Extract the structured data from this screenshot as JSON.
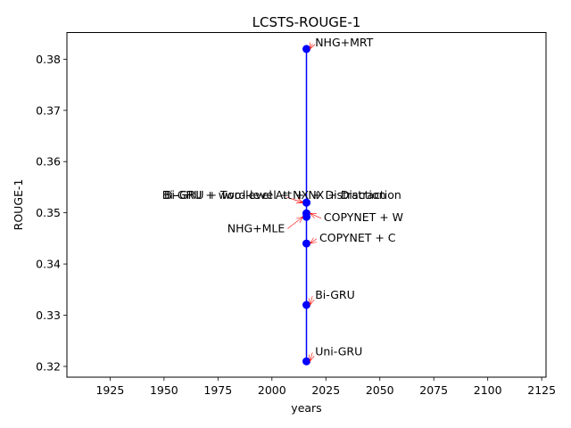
{
  "chart_data": {
    "type": "line",
    "title": "LCSTS-ROUGE-1",
    "xlabel": "years",
    "ylabel": "ROUGE-1",
    "xlim": [
      1905,
      2127
    ],
    "ylim": [
      0.3179,
      0.3852
    ],
    "xticks": [
      1925,
      1950,
      1975,
      2000,
      2025,
      2050,
      2075,
      2100,
      2125
    ],
    "yticks": [
      0.32,
      0.33,
      0.34,
      0.35,
      0.36,
      0.37,
      0.38
    ],
    "grid": false,
    "line_color": "#0000ff",
    "marker_color": "#0000ff",
    "arrow_color": "#ff0000",
    "points": [
      {
        "label": "NHG+MRT",
        "x": 2016,
        "y": 0.382,
        "text_x": 2020,
        "text_y": 0.3825,
        "ha": "left"
      },
      {
        "label": "Bi-GRU + word-level + NX + Distraction",
        "x": 2016,
        "y": 0.352,
        "text_x": 2001,
        "text_y": 0.3527,
        "ha": "center"
      },
      {
        "label": "Bi-GRU + Two-level Att + NX + Distraction",
        "x": 2016,
        "y": 0.352,
        "text_x": 2005,
        "text_y": 0.3527,
        "ha": "center"
      },
      {
        "label": "COPYNET + W",
        "x": 2016,
        "y": 0.3499,
        "text_x": 2024,
        "text_y": 0.3484,
        "ha": "left"
      },
      {
        "label": "NHG+MLE",
        "x": 2016,
        "y": 0.3492,
        "text_x": 2006,
        "text_y": 0.3462,
        "ha": "right"
      },
      {
        "label": "COPYNET + C",
        "x": 2016,
        "y": 0.344,
        "text_x": 2022,
        "text_y": 0.3444,
        "ha": "left"
      },
      {
        "label": "Bi-GRU",
        "x": 2016,
        "y": 0.332,
        "text_x": 2020,
        "text_y": 0.3332,
        "ha": "left"
      },
      {
        "label": "Uni-GRU",
        "x": 2016,
        "y": 0.321,
        "text_x": 2020,
        "text_y": 0.3222,
        "ha": "left"
      }
    ],
    "line_order": [
      0.382,
      0.352,
      0.352,
      0.3499,
      0.3492,
      0.344,
      0.332,
      0.321
    ]
  }
}
